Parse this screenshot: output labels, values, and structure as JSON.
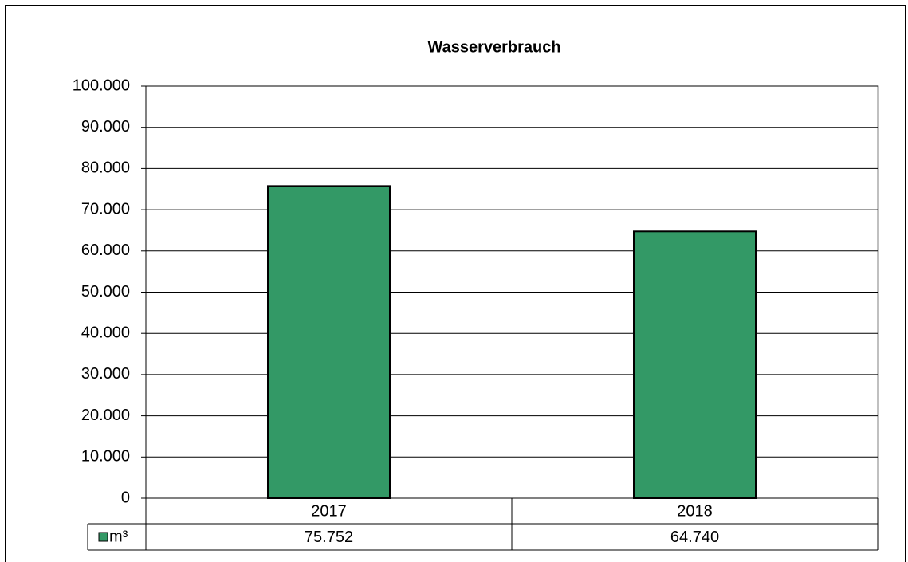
{
  "chart_data": {
    "type": "bar",
    "title": "Wasserverbrauch",
    "categories": [
      "2017",
      "2018"
    ],
    "series": [
      {
        "name": "m³",
        "color": "#339966",
        "values": [
          75752,
          64740
        ],
        "value_labels": [
          "75.752",
          "64.740"
        ]
      }
    ],
    "ylim": [
      0,
      100000
    ],
    "yticks": [
      0,
      {
        "value": 10000,
        "label": "10.000"
      },
      {
        "value": 20000,
        "label": "20.000"
      },
      {
        "value": 30000,
        "label": "30.000"
      },
      {
        "value": 40000,
        "label": "40.000"
      },
      {
        "value": 50000,
        "label": "50.000"
      },
      {
        "value": 60000,
        "label": "60.000"
      },
      {
        "value": 70000,
        "label": "70.000"
      },
      {
        "value": 80000,
        "label": "80.000"
      },
      {
        "value": 90000,
        "label": "90.000"
      },
      {
        "value": 100000,
        "label": "100.000"
      }
    ],
    "grid": true
  }
}
